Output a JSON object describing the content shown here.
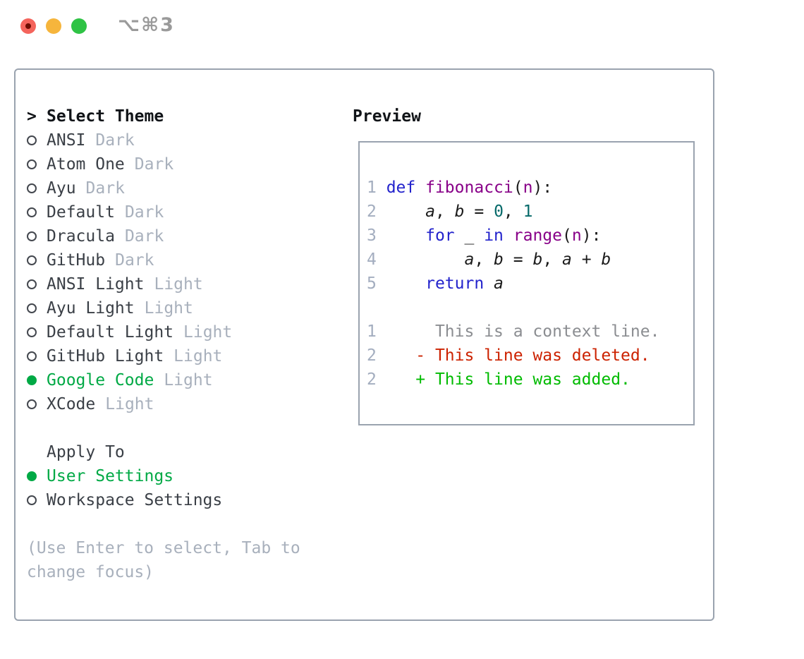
{
  "window": {
    "title": "⌥⌘3",
    "controls": [
      "close-button",
      "minimize-button",
      "maximize-button"
    ]
  },
  "theme_picker": {
    "prompt": ">",
    "header": "Select Theme",
    "items": [
      {
        "name": "ANSI",
        "variant": "Dark",
        "selected": false
      },
      {
        "name": "Atom One",
        "variant": "Dark",
        "selected": false
      },
      {
        "name": "Ayu",
        "variant": "Dark",
        "selected": false
      },
      {
        "name": "Default",
        "variant": "Dark",
        "selected": false
      },
      {
        "name": "Dracula",
        "variant": "Dark",
        "selected": false
      },
      {
        "name": "GitHub",
        "variant": "Dark",
        "selected": false
      },
      {
        "name": "ANSI Light",
        "variant": "Light",
        "selected": false
      },
      {
        "name": "Ayu Light",
        "variant": "Light",
        "selected": false
      },
      {
        "name": "Default Light",
        "variant": "Light",
        "selected": false
      },
      {
        "name": "GitHub Light",
        "variant": "Light",
        "selected": false
      },
      {
        "name": "Google Code",
        "variant": "Light",
        "selected": true
      },
      {
        "name": "XCode",
        "variant": "Light",
        "selected": false
      }
    ]
  },
  "apply_to": {
    "header": "Apply To",
    "options": [
      {
        "label": "User Settings",
        "selected": true
      },
      {
        "label": "Workspace Settings",
        "selected": false
      }
    ]
  },
  "help": {
    "line1": "(Use Enter to select, Tab to",
    "line2": "change focus)"
  },
  "preview": {
    "header": "Preview",
    "lines": [
      [
        {
          "t": "1 ",
          "s": "num"
        },
        {
          "t": "def",
          "s": "kwd"
        },
        {
          "t": " ",
          "s": "pln"
        },
        {
          "t": "fibonacci",
          "s": "typ"
        },
        {
          "t": "(",
          "s": "pln"
        },
        {
          "t": "n",
          "s": "typ"
        },
        {
          "t": "):",
          "s": "pln"
        }
      ],
      [
        {
          "t": "2 ",
          "s": "num"
        },
        {
          "t": "    ",
          "s": "pln"
        },
        {
          "t": "a",
          "s": "var"
        },
        {
          "t": ", ",
          "s": "pln"
        },
        {
          "t": "b",
          "s": "var"
        },
        {
          "t": " = ",
          "s": "pln"
        },
        {
          "t": "0",
          "s": "lit"
        },
        {
          "t": ", ",
          "s": "pln"
        },
        {
          "t": "1",
          "s": "lit"
        }
      ],
      [
        {
          "t": "3 ",
          "s": "num"
        },
        {
          "t": "    ",
          "s": "pln"
        },
        {
          "t": "for",
          "s": "kwd"
        },
        {
          "t": " _ ",
          "s": "pln"
        },
        {
          "t": "in",
          "s": "kwd"
        },
        {
          "t": " ",
          "s": "pln"
        },
        {
          "t": "range",
          "s": "typ"
        },
        {
          "t": "(",
          "s": "pln"
        },
        {
          "t": "n",
          "s": "typ"
        },
        {
          "t": "):",
          "s": "pln"
        }
      ],
      [
        {
          "t": "4 ",
          "s": "num"
        },
        {
          "t": "        ",
          "s": "pln"
        },
        {
          "t": "a",
          "s": "var"
        },
        {
          "t": ", ",
          "s": "pln"
        },
        {
          "t": "b",
          "s": "var"
        },
        {
          "t": " = ",
          "s": "pln"
        },
        {
          "t": "b",
          "s": "var"
        },
        {
          "t": ", ",
          "s": "pln"
        },
        {
          "t": "a",
          "s": "var"
        },
        {
          "t": " + ",
          "s": "pln"
        },
        {
          "t": "b",
          "s": "var"
        }
      ],
      [
        {
          "t": "5 ",
          "s": "num"
        },
        {
          "t": "    ",
          "s": "pln"
        },
        {
          "t": "return",
          "s": "kwd"
        },
        {
          "t": " ",
          "s": "pln"
        },
        {
          "t": "a",
          "s": "var"
        }
      ],
      [],
      [
        {
          "t": "1",
          "s": "num"
        },
        {
          "t": "      ",
          "s": "pln"
        },
        {
          "t": "This is a context line.",
          "s": "ctx"
        }
      ],
      [
        {
          "t": "2",
          "s": "num"
        },
        {
          "t": "    ",
          "s": "pln"
        },
        {
          "t": "- This line was deleted.",
          "s": "del"
        }
      ],
      [
        {
          "t": "2",
          "s": "num"
        },
        {
          "t": "    ",
          "s": "pln"
        },
        {
          "t": "+ This line was added.",
          "s": "add"
        }
      ]
    ]
  },
  "icons": {
    "radio_unselected": "circle-outline",
    "radio_selected": "circle-filled-green",
    "prompt": "chevron-right"
  },
  "colors": {
    "selected_green": "#00a945",
    "diff_added": "#00bb00",
    "diff_deleted": "#cc2200",
    "diff_context": "#8b8d91",
    "keyword_blue": "#2323cc",
    "identifier_purple": "#880088",
    "literal_teal": "#066a6a",
    "muted_gray": "#a8b0bc",
    "line_number_gray": "#a3adbf",
    "panel_border": "#9aa3af",
    "traffic_red": "#f4645c",
    "traffic_yellow": "#f6b53c",
    "traffic_green": "#2fc345",
    "title_gray": "#9a9a9a"
  }
}
